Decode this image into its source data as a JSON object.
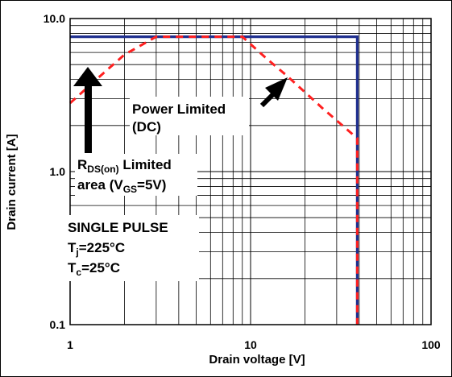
{
  "chart_data": {
    "type": "line",
    "title": "",
    "xlabel": "Drain voltage [V]",
    "ylabel": "Drain current [A]",
    "xscale": "log",
    "yscale": "log",
    "xlim": [
      1,
      100
    ],
    "ylim": [
      0.1,
      10
    ],
    "x_tick_labels": [
      "1",
      "10",
      "100"
    ],
    "y_tick_labels": [
      "10.0",
      "1.0",
      "0.1"
    ],
    "grid": true,
    "legend": "none",
    "colors": {
      "boundary": "#1f2f8f",
      "power_limit": "#ff2020"
    },
    "series": [
      {
        "style": "solid",
        "color": "#1f2f8f",
        "x": [
          1,
          39,
          39
        ],
        "y": [
          7.6,
          7.6,
          0.1
        ]
      },
      {
        "style": "dashed",
        "color": "#ff2020",
        "x": [
          1,
          1.5,
          2,
          3,
          3.3,
          9,
          12,
          16,
          25,
          39,
          39
        ],
        "y": [
          2.8,
          4.3,
          5.8,
          7.6,
          7.6,
          7.6,
          5.6,
          4.2,
          2.6,
          1.65,
          0.1
        ]
      }
    ],
    "annotations": {
      "power_limited": [
        "Power Limited",
        "(DC)"
      ],
      "rds_line1": {
        "main": "R",
        "sub": "DS(on)",
        "rest": " Limited"
      },
      "rds_line2": {
        "pre": "area (V",
        "sub": "GS",
        "post": "=5V)"
      },
      "single_pulse": "SINGLE PULSE",
      "tj": {
        "main": "T",
        "sub": "j",
        "rest": "=225°C"
      },
      "tc": {
        "main": "T",
        "sub": "c",
        "rest": "=25°C"
      }
    }
  }
}
